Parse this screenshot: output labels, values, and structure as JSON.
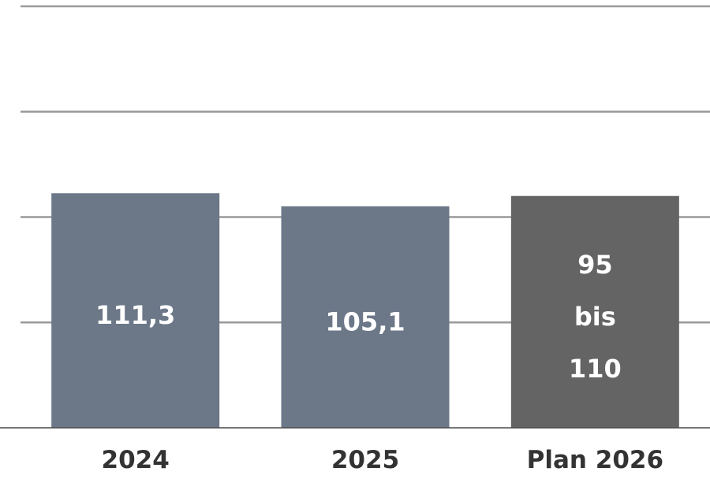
{
  "chart_data": {
    "type": "bar",
    "categories": [
      "2024",
      "2025",
      "Plan 2026"
    ],
    "values": [
      111.3,
      105.1,
      110
    ],
    "value_range_plan_2026": [
      95,
      110
    ],
    "data_labels": [
      [
        "111,3"
      ],
      [
        "105,1"
      ],
      [
        "95",
        "bis",
        "110"
      ]
    ],
    "bar_colors": [
      "#6c7888",
      "#6c7888",
      "#646464"
    ],
    "title": "",
    "xlabel": "",
    "ylabel": "",
    "ylim": [
      0,
      200
    ],
    "grid": true,
    "grid_interval": 50
  }
}
